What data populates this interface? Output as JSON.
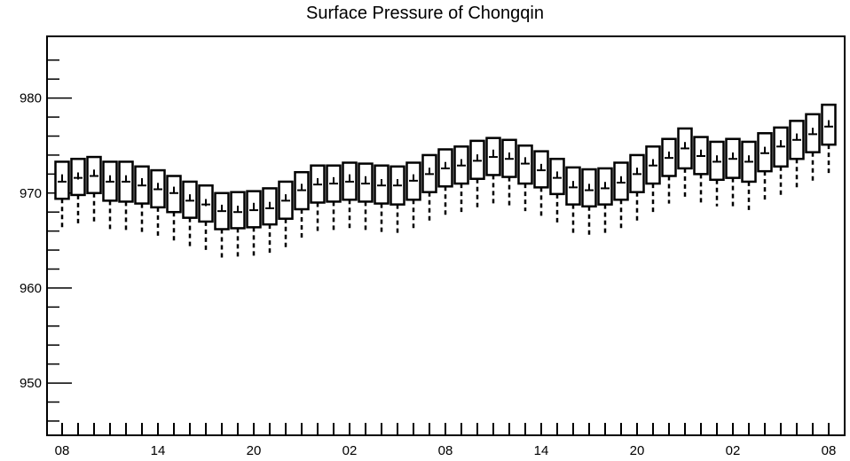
{
  "chart_data": {
    "type": "box",
    "title": "Surface Pressure of Chongqin",
    "xlabel": "",
    "ylabel": "",
    "ylim": [
      944.5,
      986.5
    ],
    "grid": false,
    "y_ticks": [
      950,
      960,
      970,
      980
    ],
    "x_tick_labels": [
      "08",
      "14",
      "20",
      "02",
      "08",
      "14",
      "20",
      "02",
      "08"
    ],
    "x_tick_hours": [
      0,
      6,
      12,
      18,
      24,
      30,
      36,
      42,
      48
    ],
    "hours": [
      0,
      1,
      2,
      3,
      4,
      5,
      6,
      7,
      8,
      9,
      10,
      11,
      12,
      13,
      14,
      15,
      16,
      17,
      18,
      19,
      20,
      21,
      22,
      23,
      24,
      25,
      26,
      27,
      28,
      29,
      30,
      31,
      32,
      33,
      34,
      35,
      36,
      37,
      38,
      39,
      40,
      41,
      42,
      43,
      44,
      45,
      46,
      47,
      48
    ],
    "q3": [
      973.3,
      973.6,
      973.8,
      973.3,
      973.3,
      972.8,
      972.4,
      971.8,
      971.2,
      970.8,
      970.0,
      970.1,
      970.2,
      970.5,
      971.2,
      972.2,
      972.9,
      972.9,
      973.2,
      973.1,
      972.9,
      972.8,
      973.2,
      974.0,
      974.6,
      974.9,
      975.5,
      975.8,
      975.6,
      975.0,
      974.4,
      973.6,
      972.7,
      972.5,
      972.6,
      973.2,
      974.0,
      974.9,
      975.7,
      976.8,
      975.9,
      975.4,
      975.7,
      975.4,
      976.3,
      976.9,
      977.6,
      978.3,
      979.3
    ],
    "q1": [
      969.4,
      969.8,
      970.0,
      969.2,
      969.1,
      968.9,
      968.5,
      968.0,
      967.4,
      967.0,
      966.2,
      966.3,
      966.4,
      966.7,
      967.3,
      968.3,
      969.0,
      969.1,
      969.3,
      969.1,
      968.9,
      968.8,
      969.3,
      970.1,
      970.7,
      971.0,
      971.5,
      971.9,
      971.7,
      971.0,
      970.6,
      969.9,
      968.8,
      968.6,
      968.8,
      969.3,
      970.1,
      971.0,
      971.8,
      972.6,
      972.0,
      971.4,
      971.6,
      971.2,
      972.3,
      972.8,
      973.6,
      974.3,
      975.1
    ],
    "mean": [
      971.6,
      971.8,
      972.1,
      971.5,
      971.5,
      971.2,
      970.7,
      970.3,
      969.5,
      969.0,
      968.4,
      968.3,
      968.6,
      968.7,
      969.5,
      970.6,
      971.2,
      971.3,
      971.6,
      971.4,
      971.1,
      971.1,
      971.6,
      972.3,
      972.9,
      973.2,
      973.7,
      974.2,
      973.9,
      973.4,
      972.7,
      971.9,
      970.9,
      970.6,
      970.8,
      971.4,
      972.3,
      973.2,
      974.0,
      975.0,
      974.2,
      973.6,
      973.9,
      973.6,
      974.5,
      975.2,
      975.9,
      976.5,
      977.3
    ],
    "median": [
      971.2,
      971.6,
      971.8,
      971.2,
      971.2,
      970.8,
      970.4,
      970.0,
      969.2,
      968.8,
      968.1,
      968.0,
      968.2,
      968.4,
      969.2,
      970.3,
      970.9,
      971.0,
      971.2,
      971.0,
      970.8,
      970.8,
      971.3,
      972.0,
      972.6,
      972.9,
      973.4,
      973.8,
      973.6,
      973.1,
      972.4,
      971.6,
      970.6,
      970.3,
      970.5,
      971.1,
      972.0,
      972.9,
      973.7,
      974.7,
      973.9,
      973.3,
      973.6,
      973.3,
      974.2,
      974.9,
      975.6,
      976.2,
      977.0
    ],
    "whisker_low": [
      966.2,
      966.6,
      966.8,
      966.2,
      966.1,
      965.6,
      965.3,
      964.8,
      964.3,
      963.8,
      963.0,
      963.2,
      963.3,
      963.5,
      964.2,
      965.2,
      965.8,
      966.0,
      966.1,
      966.0,
      965.8,
      965.8,
      966.2,
      967.0,
      967.6,
      967.9,
      968.4,
      968.8,
      968.6,
      968.1,
      967.5,
      966.6,
      965.8,
      965.6,
      965.7,
      966.2,
      967.1,
      967.9,
      968.9,
      969.4,
      969.0,
      968.6,
      968.6,
      968.2,
      969.3,
      969.7,
      970.5,
      971.1,
      971.9
    ]
  }
}
